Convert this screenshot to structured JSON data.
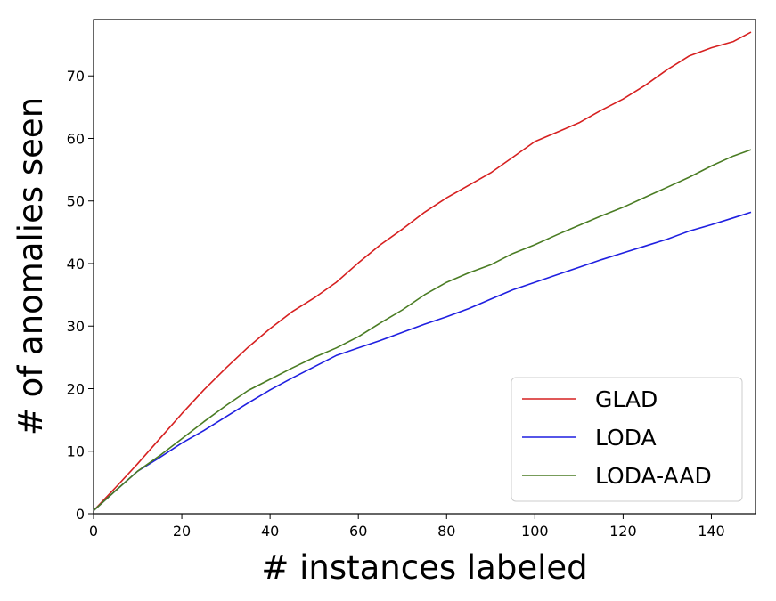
{
  "chart_data": {
    "type": "line",
    "title": "",
    "xlabel": "# instances labeled",
    "ylabel": "# of anomalies seen",
    "xlim": [
      0,
      150
    ],
    "ylim": [
      0,
      79
    ],
    "xticks": [
      0,
      20,
      40,
      60,
      80,
      100,
      120,
      140
    ],
    "yticks": [
      0,
      10,
      20,
      30,
      40,
      50,
      60,
      70
    ],
    "grid": false,
    "legend_position": "lower-right",
    "x": [
      0,
      5,
      10,
      15,
      20,
      25,
      30,
      35,
      40,
      45,
      50,
      55,
      60,
      65,
      70,
      75,
      80,
      85,
      90,
      95,
      100,
      105,
      110,
      115,
      120,
      125,
      130,
      135,
      140,
      145,
      149
    ],
    "series": [
      {
        "name": "GLAD",
        "color": "#d62020",
        "values": [
          0.5,
          4.2,
          8.0,
          12.0,
          16.0,
          19.8,
          23.3,
          26.6,
          29.6,
          32.3,
          34.5,
          37.0,
          40.1,
          43.0,
          45.5,
          48.2,
          50.5,
          52.5,
          54.5,
          57.0,
          59.5,
          61.0,
          62.5,
          64.5,
          66.3,
          68.5,
          71.0,
          73.2,
          74.5,
          75.5,
          77.0
        ]
      },
      {
        "name": "LODA",
        "color": "#1f1fe0",
        "values": [
          0.5,
          3.7,
          6.8,
          9.0,
          11.3,
          13.3,
          15.5,
          17.7,
          19.8,
          21.7,
          23.5,
          25.3,
          26.5,
          27.7,
          29.0,
          30.3,
          31.5,
          32.8,
          34.3,
          35.8,
          37.0,
          38.2,
          39.4,
          40.6,
          41.7,
          42.8,
          43.9,
          45.2,
          46.2,
          47.3,
          48.2
        ]
      },
      {
        "name": "LODA-AAD",
        "color": "#4a7c23",
        "values": [
          0.5,
          3.7,
          6.8,
          9.3,
          12.0,
          14.7,
          17.3,
          19.7,
          21.5,
          23.3,
          25.0,
          26.5,
          28.3,
          30.5,
          32.6,
          35.0,
          37.0,
          38.5,
          39.8,
          41.6,
          43.0,
          44.6,
          46.1,
          47.6,
          49.0,
          50.6,
          52.2,
          53.8,
          55.6,
          57.2,
          58.2
        ]
      }
    ]
  }
}
